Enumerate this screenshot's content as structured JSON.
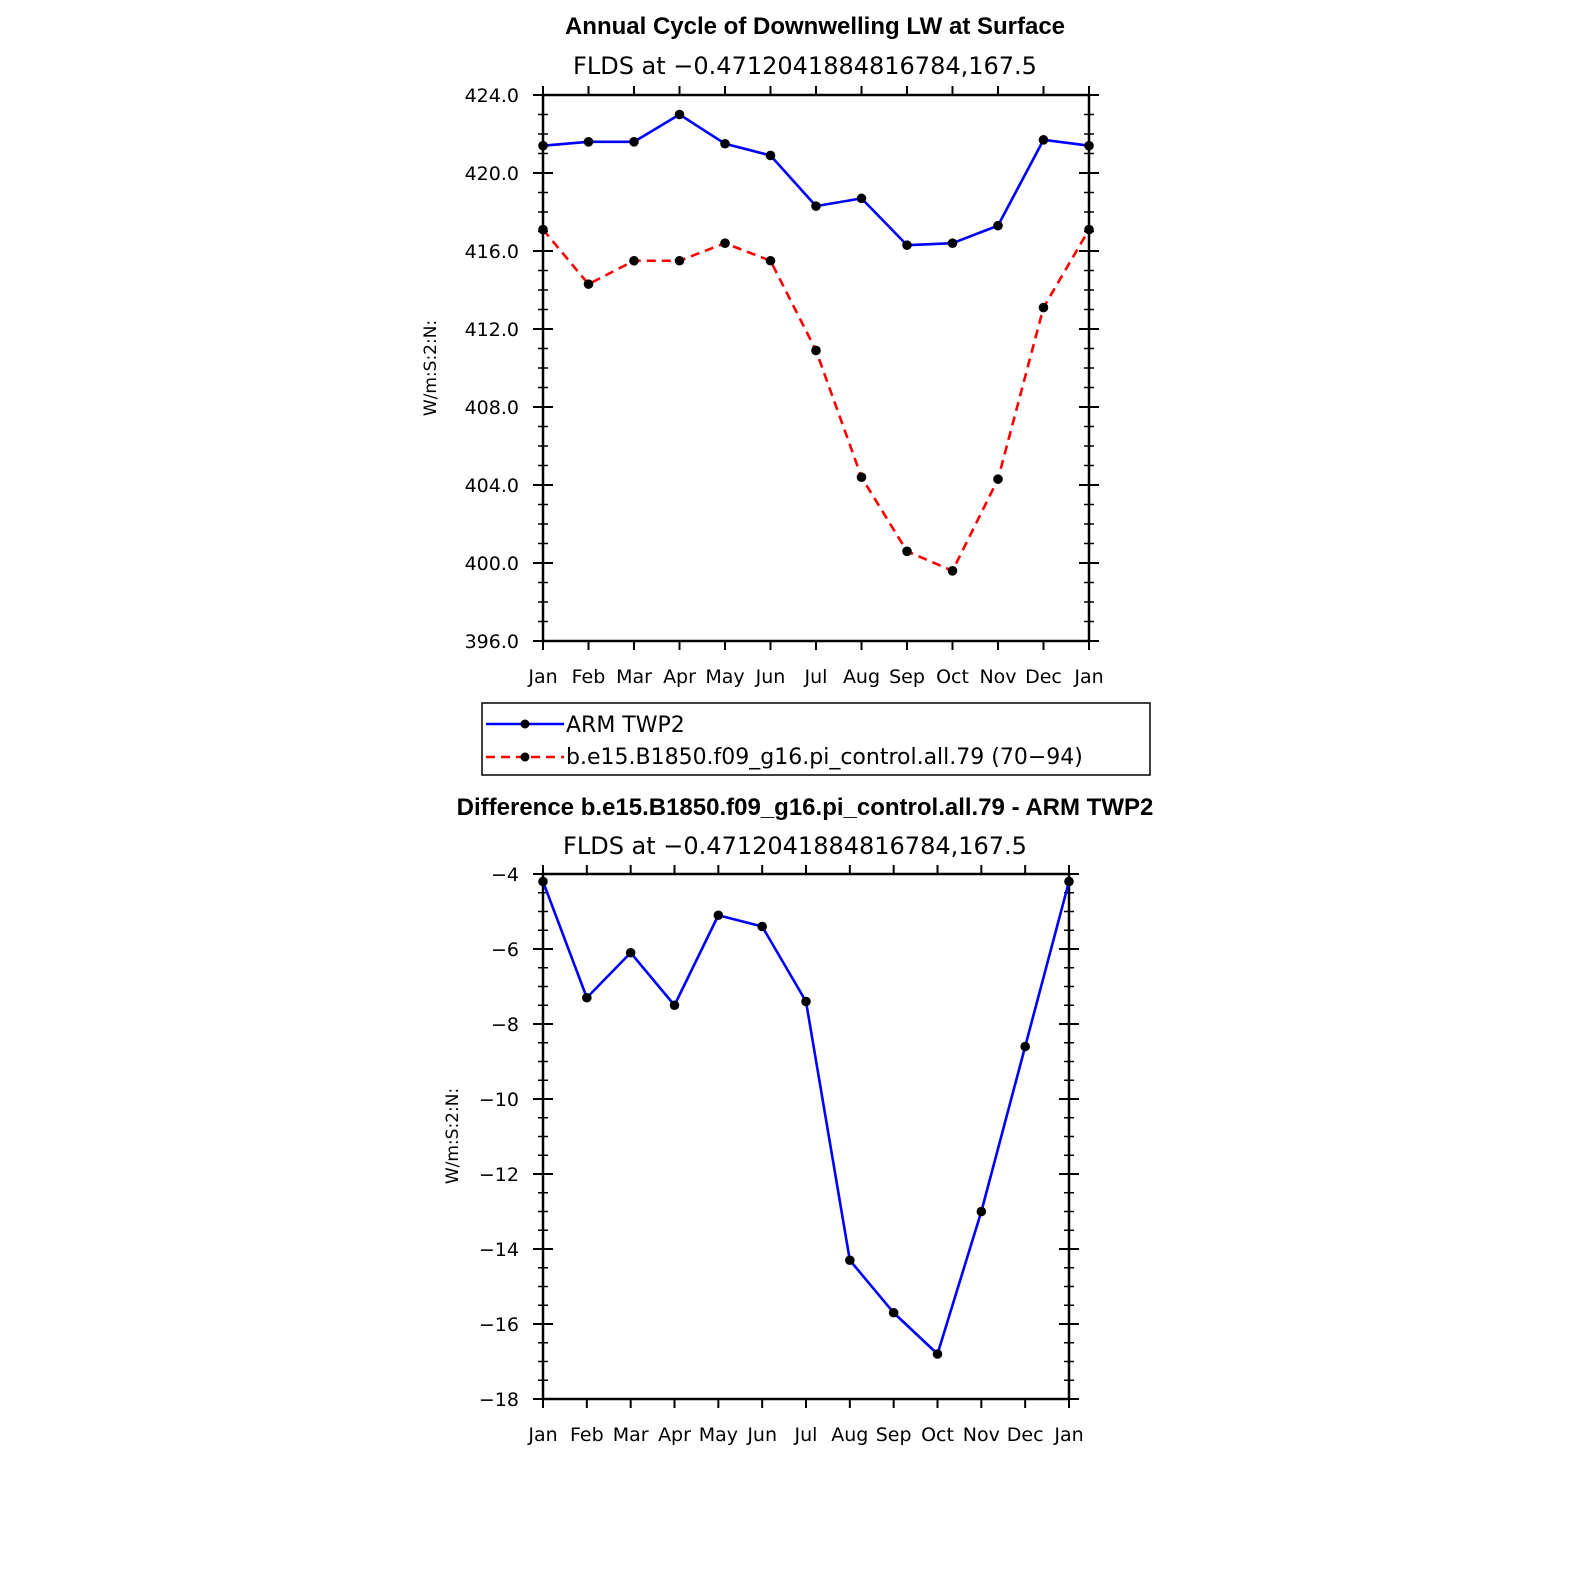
{
  "chart_data": [
    {
      "type": "line",
      "title": "Annual Cycle of Downwelling LW at Surface",
      "subtitle": "FLDS at −0.4712041884816784,167.5",
      "xlabel": "",
      "ylabel": "W/m:S:2:N:",
      "categories": [
        "Jan",
        "Feb",
        "Mar",
        "Apr",
        "May",
        "Jun",
        "Jul",
        "Aug",
        "Sep",
        "Oct",
        "Nov",
        "Dec",
        "Jan"
      ],
      "ylim": [
        396,
        424
      ],
      "yticks": [
        396,
        400,
        404,
        408,
        412,
        416,
        420,
        424
      ],
      "ytick_labels": [
        "396.0",
        "400.0",
        "404.0",
        "408.0",
        "412.0",
        "416.0",
        "420.0",
        "424.0"
      ],
      "grid": false,
      "legend_position": "bottom",
      "series": [
        {
          "name": "ARM  TWP2",
          "color": "#0000ff",
          "dash": "solid",
          "values": [
            421.4,
            421.6,
            421.6,
            423.0,
            421.5,
            420.9,
            418.3,
            418.7,
            416.3,
            416.4,
            417.3,
            421.7,
            421.4
          ]
        },
        {
          "name": "b.e15.B1850.f09_g16.pi_control.all.79 (70−94)",
          "color": "#ff0000",
          "dash": "dashed",
          "values": [
            417.1,
            414.3,
            415.5,
            415.5,
            416.4,
            415.5,
            410.9,
            404.4,
            400.6,
            399.6,
            404.3,
            413.1,
            417.1
          ]
        }
      ]
    },
    {
      "type": "line",
      "title": "Difference b.e15.B1850.f09_g16.pi_control.all.79 - ARM TWP2",
      "subtitle": "FLDS at −0.4712041884816784,167.5",
      "xlabel": "",
      "ylabel": "W/m:S:2:N:",
      "categories": [
        "Jan",
        "Feb",
        "Mar",
        "Apr",
        "May",
        "Jun",
        "Jul",
        "Aug",
        "Sep",
        "Oct",
        "Nov",
        "Dec",
        "Jan"
      ],
      "ylim": [
        -18,
        -4
      ],
      "yticks": [
        -18,
        -16,
        -14,
        -12,
        -10,
        -8,
        -6,
        -4
      ],
      "ytick_labels": [
        "−18",
        "−16",
        "−14",
        "−12",
        "−10",
        "−8",
        "−6",
        "−4"
      ],
      "grid": false,
      "series": [
        {
          "color": "#0000ff",
          "dash": "solid",
          "values": [
            -4.2,
            -7.3,
            -6.1,
            -7.5,
            -5.1,
            -5.4,
            -7.4,
            -14.3,
            -15.7,
            -16.8,
            -13.0,
            -8.6,
            -4.2
          ]
        }
      ]
    }
  ]
}
